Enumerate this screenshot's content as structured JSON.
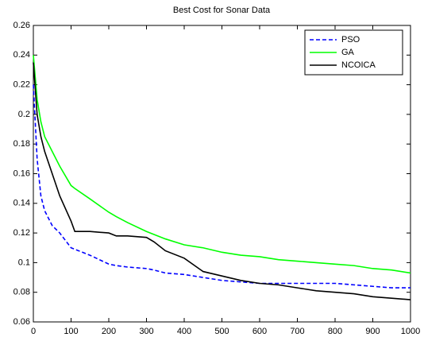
{
  "chart_data": {
    "type": "line",
    "title": "Best Cost for Sonar Data",
    "x": [
      0,
      10,
      20,
      30,
      50,
      70,
      100,
      110,
      150,
      200,
      220,
      250,
      300,
      320,
      350,
      400,
      450,
      500,
      550,
      600,
      650,
      700,
      750,
      800,
      850,
      900,
      950,
      1000
    ],
    "series": [
      {
        "name": "PSO",
        "color": "#0000ff",
        "style": "dashed",
        "values": [
          0.22,
          0.17,
          0.145,
          0.135,
          0.125,
          0.12,
          0.11,
          0.109,
          0.105,
          0.099,
          0.098,
          0.097,
          0.096,
          0.095,
          0.093,
          0.092,
          0.09,
          0.088,
          0.087,
          0.086,
          0.086,
          0.086,
          0.086,
          0.086,
          0.085,
          0.084,
          0.083,
          0.083
        ]
      },
      {
        "name": "GA",
        "color": "#00ff00",
        "style": "solid",
        "values": [
          0.24,
          0.21,
          0.195,
          0.185,
          0.175,
          0.165,
          0.152,
          0.15,
          0.143,
          0.134,
          0.131,
          0.127,
          0.121,
          0.119,
          0.116,
          0.112,
          0.11,
          0.107,
          0.105,
          0.104,
          0.102,
          0.101,
          0.1,
          0.099,
          0.098,
          0.096,
          0.095,
          0.093
        ]
      },
      {
        "name": "NCOICA",
        "color": "#000000",
        "style": "solid",
        "values": [
          0.235,
          0.2,
          0.185,
          0.175,
          0.16,
          0.145,
          0.128,
          0.121,
          0.121,
          0.12,
          0.118,
          0.118,
          0.117,
          0.114,
          0.108,
          0.103,
          0.094,
          0.091,
          0.088,
          0.086,
          0.085,
          0.083,
          0.081,
          0.08,
          0.079,
          0.077,
          0.076,
          0.075
        ]
      }
    ],
    "xlim": [
      0,
      1000
    ],
    "xticks": [
      0,
      100,
      200,
      300,
      400,
      500,
      600,
      700,
      800,
      900,
      1000
    ],
    "ylim": [
      0.06,
      0.26
    ],
    "yticks": [
      0.06,
      0.08,
      0.1,
      0.12,
      0.14,
      0.16,
      0.18,
      0.2,
      0.22,
      0.24,
      0.26
    ],
    "grid": false,
    "legend": "northeast"
  }
}
